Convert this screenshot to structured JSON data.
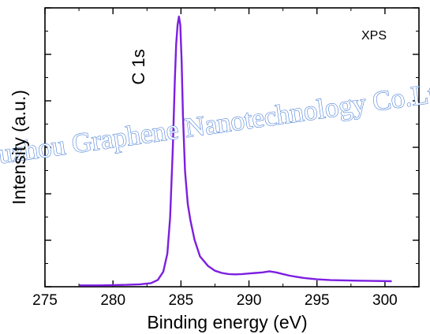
{
  "chart_data": {
    "type": "line",
    "xlabel": "Binding energy (eV)",
    "ylabel": "Intensity (a.u.)",
    "xlim": [
      275,
      302.5
    ],
    "ylim": [
      0,
      100
    ],
    "x_ticks": [
      275,
      280,
      285,
      290,
      295,
      300
    ],
    "y_ticks_labeled": false,
    "grid": false,
    "annotations": [
      {
        "text": "XPS",
        "position": "top-right"
      },
      {
        "text": "C 1s",
        "near_x": 283.7,
        "rotated": true
      }
    ],
    "watermark": "Suzhou Graphene Nanotechnology Co.Ltd.",
    "series": [
      {
        "color": "#7c1fe0",
        "x": [
          277.5,
          279,
          280,
          281,
          282,
          282.8,
          283.3,
          283.7,
          284.0,
          284.2,
          284.4,
          284.55,
          284.65,
          284.75,
          284.85,
          284.95,
          285.05,
          285.15,
          285.3,
          285.5,
          285.7,
          286.0,
          286.4,
          287.0,
          287.5,
          288.0,
          288.5,
          289.0,
          289.5,
          290.0,
          290.5,
          291.0,
          291.5,
          292.0,
          292.5,
          293.0,
          293.5,
          294.0,
          295.0,
          296.0,
          297.0,
          298.0,
          299.0,
          300.5
        ],
        "y": [
          0.5,
          0.5,
          0.6,
          0.7,
          0.9,
          1.3,
          2.5,
          5.5,
          12,
          25,
          50,
          75,
          88,
          95,
          98,
          95,
          82,
          62,
          42,
          30,
          24,
          17,
          11,
          7.5,
          5.8,
          5.0,
          4.6,
          4.5,
          4.6,
          4.8,
          5.0,
          5.2,
          5.6,
          5.2,
          4.6,
          4.0,
          3.6,
          3.2,
          2.7,
          2.4,
          2.3,
          2.2,
          2.1,
          2.0
        ]
      }
    ]
  }
}
